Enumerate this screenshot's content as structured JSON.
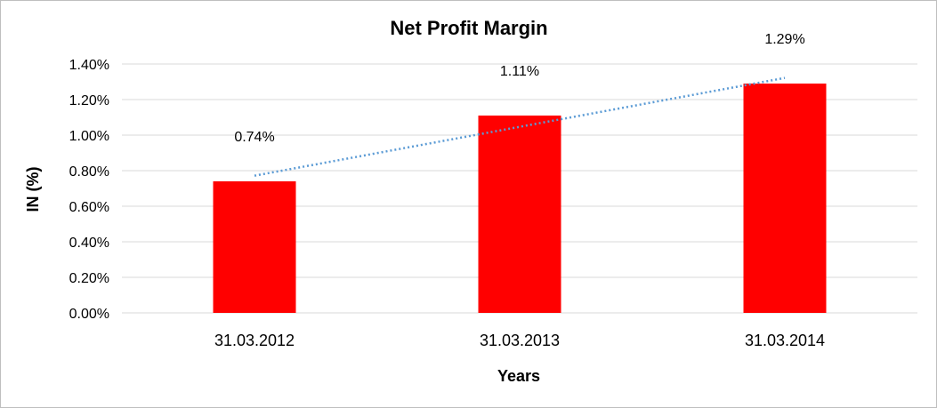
{
  "chart_data": {
    "type": "bar",
    "title": "Net Profit Margin",
    "xlabel": "Years",
    "ylabel": "IN (%)",
    "categories": [
      "31.03.2012",
      "31.03.2013",
      "31.03.2014"
    ],
    "values": [
      0.74,
      1.11,
      1.29
    ],
    "data_labels": [
      "0.74%",
      "1.11%",
      "1.29%"
    ],
    "ylim": [
      0,
      1.4
    ],
    "yticks": [
      0,
      0.2,
      0.4,
      0.6,
      0.8,
      1.0,
      1.2,
      1.4
    ],
    "ytick_labels": [
      "0.00%",
      "0.20%",
      "0.40%",
      "0.60%",
      "0.80%",
      "1.00%",
      "1.20%",
      "1.40%"
    ],
    "grid": true,
    "legend": "none",
    "bar_color": "#ff0000",
    "trendline": {
      "type": "linear",
      "style": "dotted",
      "color": "#5b9bd5"
    }
  }
}
